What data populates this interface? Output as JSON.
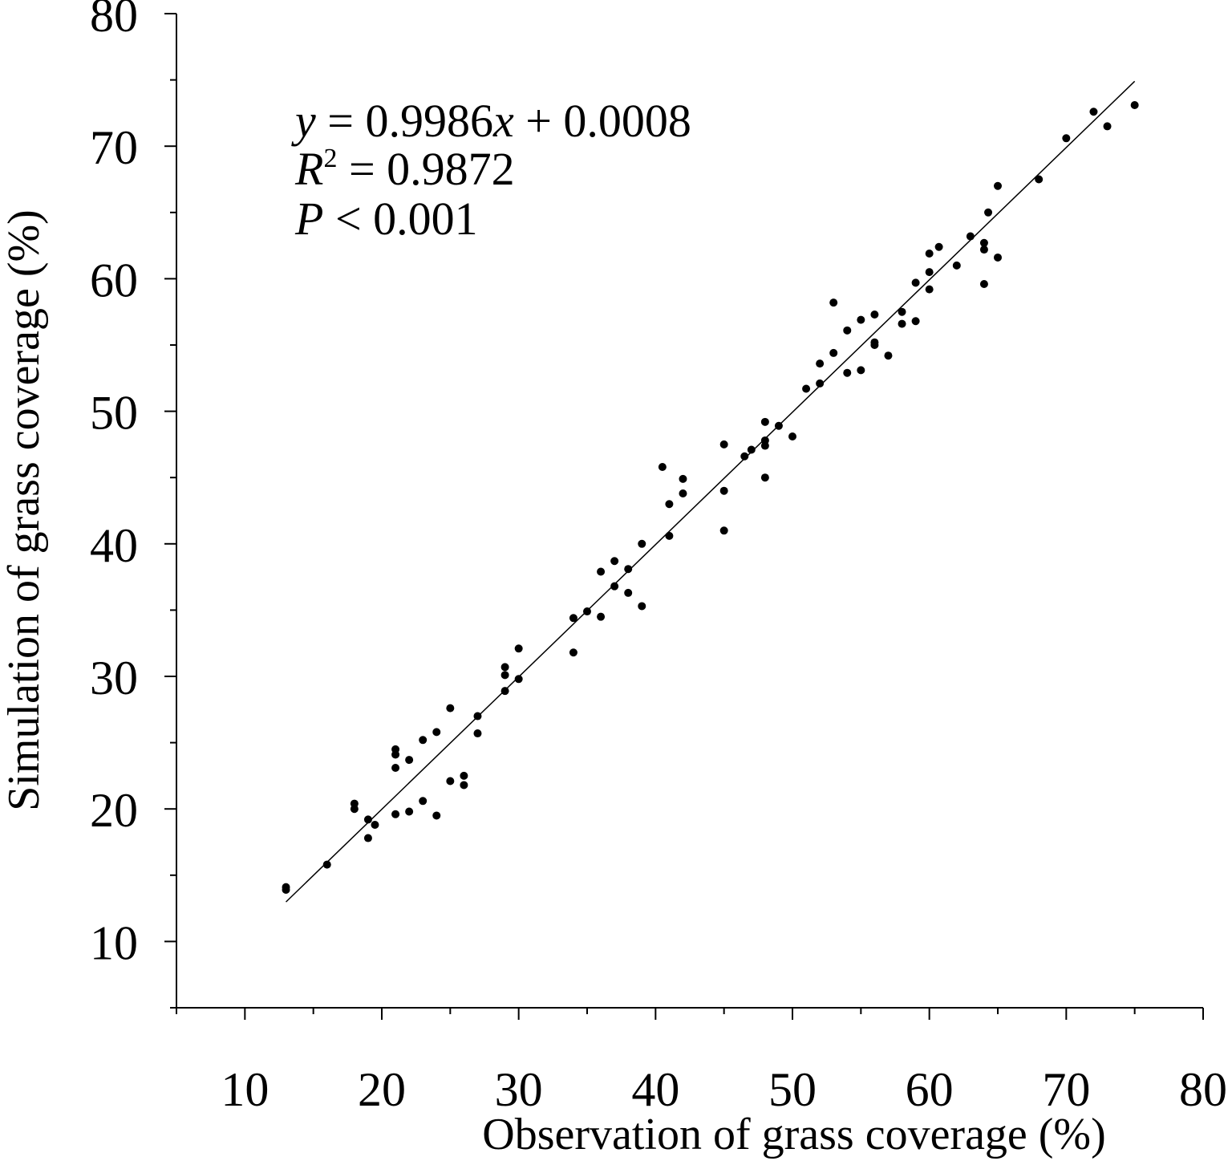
{
  "chart_data": {
    "type": "scatter",
    "xlabel": "Observation of grass coverage (%)",
    "ylabel": "Simulation of grass coverage (%)",
    "xlim": [
      5,
      80
    ],
    "ylim": [
      5,
      80
    ],
    "x_ticks": [
      10,
      20,
      30,
      40,
      50,
      60,
      70,
      80
    ],
    "y_ticks": [
      10,
      20,
      30,
      40,
      50,
      60,
      70,
      80
    ],
    "x_tick_labels": [
      "10",
      "20",
      "30",
      "40",
      "50",
      "60",
      "70",
      "80"
    ],
    "y_tick_labels": [
      "10",
      "20",
      "30",
      "40",
      "50",
      "60",
      "70",
      "80"
    ],
    "grid": false,
    "annotations": {
      "equation": {
        "y": "y",
        "eq": " = 0.9986",
        "x": "x",
        "rest": " + 0.0008"
      },
      "r2": {
        "r": "R",
        "sup": "2",
        "rest": " = 0.9872"
      },
      "p": {
        "p": "P",
        "rest": " < 0.001"
      }
    },
    "fit_line": {
      "slope": 0.9986,
      "intercept": 0.0008,
      "x_range": [
        13,
        75
      ]
    },
    "points": [
      [
        13,
        13.9
      ],
      [
        13,
        14.1
      ],
      [
        16,
        15.8
      ],
      [
        18,
        20.0
      ],
      [
        18,
        20.4
      ],
      [
        19,
        19.2
      ],
      [
        19,
        17.8
      ],
      [
        19.5,
        18.8
      ],
      [
        21,
        19.6
      ],
      [
        21,
        23.1
      ],
      [
        21,
        24.1
      ],
      [
        21,
        24.5
      ],
      [
        22,
        23.7
      ],
      [
        22,
        19.8
      ],
      [
        23,
        25.2
      ],
      [
        23,
        20.6
      ],
      [
        24,
        25.8
      ],
      [
        24,
        19.5
      ],
      [
        25,
        27.6
      ],
      [
        25,
        22.1
      ],
      [
        26,
        22.5
      ],
      [
        26,
        21.8
      ],
      [
        27,
        27.0
      ],
      [
        27,
        25.7
      ],
      [
        29,
        30.7
      ],
      [
        29,
        30.1
      ],
      [
        29,
        28.9
      ],
      [
        30,
        32.1
      ],
      [
        30,
        29.8
      ],
      [
        34,
        34.4
      ],
      [
        34,
        31.8
      ],
      [
        35,
        34.9
      ],
      [
        36,
        37.9
      ],
      [
        36,
        34.5
      ],
      [
        37,
        38.7
      ],
      [
        37,
        36.8
      ],
      [
        38,
        38.1
      ],
      [
        38,
        36.3
      ],
      [
        39,
        40.0
      ],
      [
        39,
        35.3
      ],
      [
        40.5,
        45.8
      ],
      [
        41,
        43.0
      ],
      [
        41,
        40.6
      ],
      [
        42,
        44.9
      ],
      [
        42,
        43.8
      ],
      [
        45,
        47.5
      ],
      [
        45,
        44.0
      ],
      [
        45,
        41.0
      ],
      [
        46.5,
        46.6
      ],
      [
        47,
        47.1
      ],
      [
        48,
        49.2
      ],
      [
        48,
        47.8
      ],
      [
        48,
        47.4
      ],
      [
        48,
        45.0
      ],
      [
        49,
        48.9
      ],
      [
        50,
        48.1
      ],
      [
        51,
        51.7
      ],
      [
        52,
        53.6
      ],
      [
        52,
        52.1
      ],
      [
        53,
        58.2
      ],
      [
        53,
        54.4
      ],
      [
        54,
        56.1
      ],
      [
        54,
        52.9
      ],
      [
        55,
        56.9
      ],
      [
        55,
        53.1
      ],
      [
        56,
        57.3
      ],
      [
        56,
        55.2
      ],
      [
        56,
        55.0
      ],
      [
        57,
        54.2
      ],
      [
        58,
        57.5
      ],
      [
        58,
        56.6
      ],
      [
        59,
        59.7
      ],
      [
        59,
        56.8
      ],
      [
        60,
        61.9
      ],
      [
        60,
        60.5
      ],
      [
        60,
        59.2
      ],
      [
        60.7,
        62.4
      ],
      [
        62,
        61.0
      ],
      [
        63,
        63.2
      ],
      [
        64,
        62.7
      ],
      [
        64,
        62.2
      ],
      [
        64,
        59.6
      ],
      [
        64.3,
        65.0
      ],
      [
        65,
        67.0
      ],
      [
        65,
        61.6
      ],
      [
        68,
        67.5
      ],
      [
        70,
        70.6
      ],
      [
        72,
        72.6
      ],
      [
        73,
        71.5
      ],
      [
        75,
        73.1
      ]
    ]
  }
}
